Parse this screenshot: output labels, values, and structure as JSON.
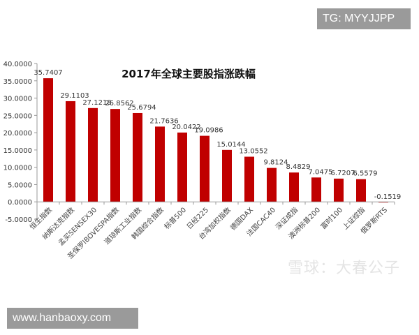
{
  "overlays": {
    "tg_label": "TG: MYYJJPP",
    "site_label": "www.hanbaoxy.com",
    "watermark": "雪球：大春公子"
  },
  "chart_data": {
    "type": "bar",
    "title": "2017年全球主要股指涨跌幅",
    "categories": [
      "恒生指数",
      "纳斯达克指数",
      "孟买SENSEX30",
      "圣保罗IBOVESPA指数",
      "道琼斯工业指数",
      "韩国综合指数",
      "标普500",
      "日经225",
      "台湾加权指数",
      "德国DAX",
      "法国CAC40",
      "深证成指",
      "澳洲标普200",
      "富时100",
      "上证综指",
      "俄罗斯RTS"
    ],
    "values": [
      35.7407,
      29.1103,
      27.1218,
      26.8562,
      25.6794,
      21.7636,
      20.0422,
      19.0986,
      15.0144,
      13.0552,
      9.8124,
      8.4829,
      7.0475,
      6.7207,
      6.5579,
      -0.1519
    ],
    "value_labels": [
      "35.7407",
      "29.1103",
      "27.1218",
      "26.8562",
      "25.6794",
      "21.7636",
      "20.0422",
      "19.0986",
      "15.0144",
      "13.0552",
      "9.8124",
      "8.4829",
      "7.0475",
      "6.7207",
      "6.5579",
      "-0.1519"
    ],
    "yticks": [
      "40.0000",
      "35.0000",
      "30.0000",
      "25.0000",
      "20.0000",
      "15.0000",
      "10.0000",
      "5.0000",
      "0.0000",
      "-5.0000"
    ],
    "ylim": [
      -5,
      40
    ],
    "xlabel": "",
    "ylabel": "",
    "grid": false,
    "legend": "none",
    "bar_color": "#c00000"
  }
}
